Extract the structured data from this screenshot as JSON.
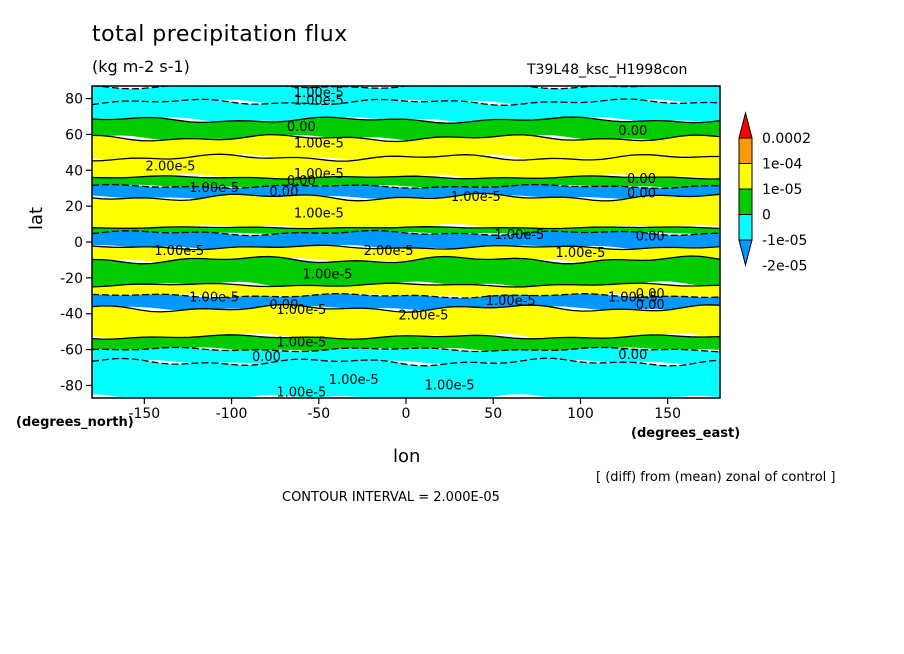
{
  "chart_data": {
    "type": "heatmap",
    "title": "total precipitation flux",
    "units": "(kg m-2 s-1)",
    "run_name": "T39L48_ksc_H1998con",
    "xlabel": "lon",
    "ylabel": "lat",
    "x_units": "(degrees_east)",
    "y_units": "(degrees_north)",
    "xlim": [
      -180,
      180
    ],
    "ylim": [
      -87,
      87
    ],
    "x_ticks": [
      -150,
      -100,
      -50,
      0,
      50,
      100,
      150
    ],
    "y_ticks": [
      -80,
      -60,
      -40,
      -20,
      0,
      20,
      40,
      60,
      80
    ],
    "note": "[ (diff) from (mean) zonal of control ]",
    "contour_interval": "CONTOUR INTERVAL = 2.000E-05",
    "colorbar": {
      "labels": [
        "0.0002",
        "1e-04",
        "1e-05",
        "0",
        "-1e-05",
        "-2e-05"
      ],
      "colors": [
        "#ff0000",
        "#ff9900",
        "#ffff00",
        "#00cc00",
        "#00ffff",
        "#0099ff"
      ]
    },
    "bands": [
      {
        "lat_max": 87,
        "lat_min": 78,
        "level": "-1e-05"
      },
      {
        "lat_max": 78,
        "lat_min": 68,
        "level": "-1e-05"
      },
      {
        "lat_max": 68,
        "lat_min": 58,
        "level": "0"
      },
      {
        "lat_max": 58,
        "lat_min": 47,
        "level": "1e-05"
      },
      {
        "lat_max": 47,
        "lat_min": 36,
        "level": "1e-05"
      },
      {
        "lat_max": 36,
        "lat_min": 31,
        "level": "0"
      },
      {
        "lat_max": 31,
        "lat_min": 25,
        "level": "-2e-05"
      },
      {
        "lat_max": 25,
        "lat_min": 8,
        "level": "1e-05"
      },
      {
        "lat_max": 8,
        "lat_min": 5,
        "level": "0"
      },
      {
        "lat_max": 5,
        "lat_min": -3,
        "level": "-2e-05"
      },
      {
        "lat_max": -3,
        "lat_min": -10,
        "level": "1e-05"
      },
      {
        "lat_max": -10,
        "lat_min": -24,
        "level": "0"
      },
      {
        "lat_max": -24,
        "lat_min": -30,
        "level": "1e-05"
      },
      {
        "lat_max": -30,
        "lat_min": -37,
        "level": "-2e-05"
      },
      {
        "lat_max": -37,
        "lat_min": -53,
        "level": "1e-05"
      },
      {
        "lat_max": -53,
        "lat_min": -60,
        "level": "0"
      },
      {
        "lat_max": -60,
        "lat_min": -67,
        "level": "-1e-05"
      },
      {
        "lat_max": -67,
        "lat_min": -87,
        "level": "-1e-05"
      }
    ],
    "contour_labels": [
      {
        "text": "1.00e-5",
        "lon": -50,
        "lat": 83
      },
      {
        "text": "1.00e-5",
        "lon": -50,
        "lat": 79
      },
      {
        "text": "0.00",
        "lon": -60,
        "lat": 64
      },
      {
        "text": "0.00",
        "lon": 130,
        "lat": 62
      },
      {
        "text": "1.00e-5",
        "lon": -50,
        "lat": 55
      },
      {
        "text": "2.00e-5",
        "lon": -135,
        "lat": 42
      },
      {
        "text": "1.00e-5",
        "lon": -50,
        "lat": 38
      },
      {
        "text": "0.00",
        "lon": -60,
        "lat": 34
      },
      {
        "text": "1.00e-5",
        "lon": -110,
        "lat": 30
      },
      {
        "text": "0.00",
        "lon": -70,
        "lat": 28
      },
      {
        "text": "0.00",
        "lon": 135,
        "lat": 35
      },
      {
        "text": "0.00",
        "lon": 135,
        "lat": 27
      },
      {
        "text": "1.00e-5",
        "lon": 40,
        "lat": 25
      },
      {
        "text": "1.00e-5",
        "lon": -50,
        "lat": 16
      },
      {
        "text": "1.00e-5",
        "lon": 65,
        "lat": 4
      },
      {
        "text": "1.00e-5",
        "lon": -130,
        "lat": -5
      },
      {
        "text": "2.00e-5",
        "lon": -10,
        "lat": -5
      },
      {
        "text": "1.00e-5",
        "lon": 100,
        "lat": -6
      },
      {
        "text": "0.00",
        "lon": 140,
        "lat": 3
      },
      {
        "text": "1.00e-5",
        "lon": -45,
        "lat": -18
      },
      {
        "text": "1.00e-5",
        "lon": -110,
        "lat": -31
      },
      {
        "text": "1.00e-5",
        "lon": 60,
        "lat": -33
      },
      {
        "text": "1.00e-5",
        "lon": 130,
        "lat": -31
      },
      {
        "text": "0.00",
        "lon": 140,
        "lat": -29
      },
      {
        "text": "0.00",
        "lon": 140,
        "lat": -35
      },
      {
        "text": "0.00",
        "lon": -70,
        "lat": -35
      },
      {
        "text": "1.00e-5",
        "lon": -60,
        "lat": -38
      },
      {
        "text": "2.00e-5",
        "lon": 10,
        "lat": -41
      },
      {
        "text": "1.00e-5",
        "lon": -60,
        "lat": -56
      },
      {
        "text": "0.00",
        "lon": -80,
        "lat": -64
      },
      {
        "text": "0.00",
        "lon": 130,
        "lat": -63
      },
      {
        "text": "1.00e-5",
        "lon": -30,
        "lat": -77
      },
      {
        "text": "1.00e-5",
        "lon": 25,
        "lat": -80
      },
      {
        "text": "1.00e-5",
        "lon": -60,
        "lat": -84
      }
    ]
  }
}
